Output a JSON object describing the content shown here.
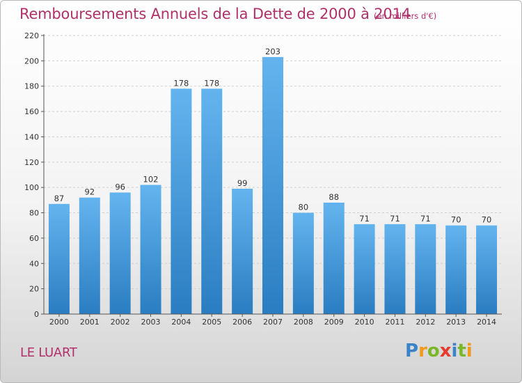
{
  "title": "Remboursements Annuels de la Dette de 2000 à 2014",
  "subtitle": "(en milliers d'€)",
  "place": "LE LUART",
  "logo": {
    "letters": [
      "P",
      "r",
      "o",
      "x",
      "i",
      "t",
      "i"
    ],
    "colors": [
      "#3b83c9",
      "#f29a1e",
      "#7ab829",
      "#e63a2e",
      "#3b83c9",
      "#7ab829",
      "#f29a1e"
    ]
  },
  "colors": {
    "accent": "#b0306a",
    "bar_top": "#63b4ee",
    "bar_bottom": "#2a7dc1",
    "grid": "#d0d0d0"
  },
  "chart_data": {
    "type": "bar",
    "categories": [
      "2000",
      "2001",
      "2002",
      "2003",
      "2004",
      "2005",
      "2006",
      "2007",
      "2008",
      "2009",
      "2010",
      "2011",
      "2012",
      "2013",
      "2014"
    ],
    "values": [
      87,
      92,
      96,
      102,
      178,
      178,
      99,
      203,
      80,
      88,
      71,
      71,
      71,
      70,
      70
    ],
    "ylim": [
      0,
      220
    ],
    "yticks": [
      0,
      20,
      40,
      60,
      80,
      100,
      120,
      140,
      160,
      180,
      200,
      220
    ],
    "grid": true,
    "legend": "none"
  }
}
